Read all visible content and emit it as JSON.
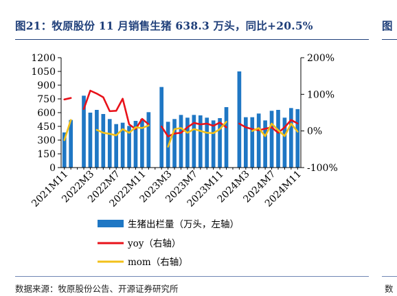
{
  "figure": {
    "title": "图21：牧原股份 11 月销售生猪 638.3 万头，同比+20.5%",
    "next_title": "图",
    "source": "数据来源：牧原股份公告、开源证券研究所",
    "next_source": "数"
  },
  "colors": {
    "title": "#1f3f7a",
    "bar": "#1f77c4",
    "yoy": "#e8121a",
    "mom": "#f2c01a"
  },
  "chart_data": {
    "type": "bar",
    "title": "",
    "x": [
      "2021M11",
      "2021M12",
      "2022M1",
      "2022M2",
      "2022M3",
      "2022M4",
      "2022M5",
      "2022M6",
      "2022M7",
      "2022M8",
      "2022M9",
      "2022M10",
      "2022M11",
      "2022M12",
      "2023M1",
      "2023M2",
      "2023M3",
      "2023M4",
      "2023M5",
      "2023M6",
      "2023M7",
      "2023M8",
      "2023M9",
      "2023M10",
      "2023M11",
      "2023M12",
      "2024M1",
      "2024M2",
      "2024M3",
      "2024M4",
      "2024M5",
      "2024M6",
      "2024M7",
      "2024M8",
      "2024M9",
      "2024M10",
      "2024M11"
    ],
    "x_tick_labels": [
      "2021M11",
      "2022M3",
      "2022M7",
      "2022M11",
      "2023M3",
      "2023M7",
      "2023M11",
      "2024M3",
      "2024M7",
      "2024M11"
    ],
    "series": [
      {
        "name": "生猪出栏量（万头，左轴）",
        "type": "bar",
        "axis": "left",
        "values": [
          384,
          520,
          null,
          785,
          600,
          630,
          585,
          530,
          475,
          490,
          455,
          510,
          530,
          605,
          null,
          880,
          500,
          530,
          575,
          545,
          575,
          570,
          545,
          515,
          540,
          660,
          null,
          1050,
          550,
          550,
          590,
          515,
          620,
          630,
          545,
          650,
          638.3
        ]
      },
      {
        "name": "yoy（右轴）",
        "type": "line",
        "axis": "right",
        "unit": "%",
        "values": [
          86,
          90,
          null,
          60,
          110,
          102,
          92,
          54,
          55,
          88,
          18,
          5,
          33,
          18,
          null,
          12,
          -15,
          -7,
          -5,
          10,
          22,
          18,
          20,
          14,
          23,
          10,
          null,
          20,
          10,
          5,
          2,
          6,
          10,
          -5,
          10,
          30,
          20.5
        ]
      },
      {
        "name": "mom（右轴）",
        "type": "line",
        "axis": "right",
        "unit": "%",
        "values": [
          -25,
          30,
          null,
          null,
          null,
          3,
          -5,
          -8,
          -12,
          5,
          -5,
          10,
          8,
          15,
          null,
          null,
          -43,
          5,
          8,
          -5,
          5,
          0,
          -5,
          -6,
          5,
          25,
          null,
          null,
          null,
          0,
          8,
          -14,
          20,
          2,
          -14,
          20,
          -2
        ]
      }
    ],
    "y_left": {
      "min": 0,
      "max": 1200,
      "ticks": [
        0,
        150,
        300,
        450,
        600,
        750,
        900,
        1050,
        1200
      ]
    },
    "y_right": {
      "min": -100,
      "max": 200,
      "ticks": [
        -100,
        0,
        100,
        200
      ],
      "unit": "%"
    },
    "legend": {
      "position": "bottom",
      "entries": [
        "生猪出栏量（万头，左轴）",
        "yoy（右轴）",
        "mom（右轴）"
      ]
    },
    "grid": false
  }
}
